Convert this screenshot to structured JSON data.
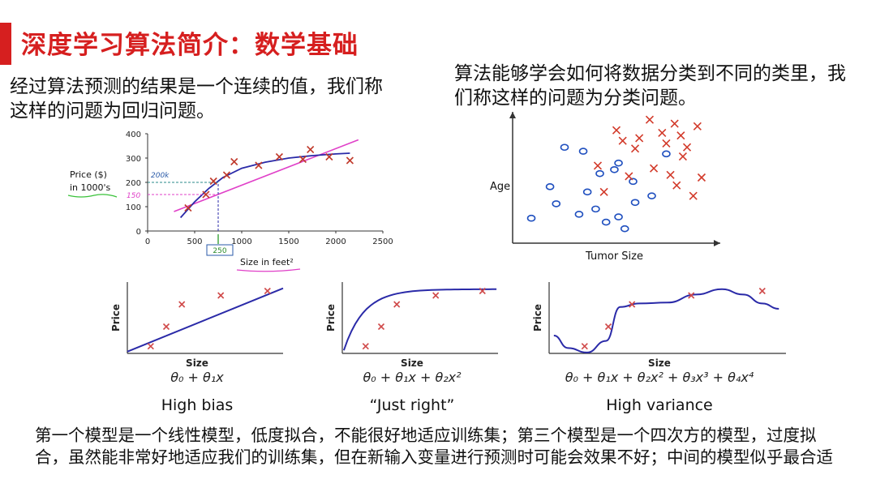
{
  "title": "深度学习算法简介：数学基础",
  "regression_text": "经过算法预测的结果是一个连续的值，我们称这样的问题为回归问题。",
  "classification_text": "算法能够学会如何将数据分类到不同的类里，我们称这样的问题为分类问题。",
  "bottom_text": "第一个模型是一个线性模型，低度拟合，不能很好地适应训练集；第三个模型是一个四次方的模型，过度拟合，虽然能非常好地适应我们的训练集，但在新输入变量进行预测时可能会效果不好；中间的模型似乎最合适",
  "colors": {
    "title": "#d61f1f",
    "fit_curve": "#2a2aa8",
    "linear_fit": "#e040c8",
    "cross": "#c0392b",
    "circle": "#1f4fbf"
  },
  "chart_data": [
    {
      "type": "scatter",
      "title": "",
      "xlabel": "Size in feet²",
      "ylabel": "Price ($) in 1000's",
      "xlim": [
        0,
        2500
      ],
      "ylim": [
        0,
        400
      ],
      "xticks": [
        "0",
        "500",
        "1000",
        "1500",
        "2000",
        "2500"
      ],
      "yticks": [
        "0",
        "100",
        "200",
        "300",
        "400"
      ],
      "annotations": [
        "200k",
        "150",
        "250"
      ],
      "points": [
        [
          430,
          95
        ],
        [
          620,
          150
        ],
        [
          700,
          205
        ],
        [
          840,
          230
        ],
        [
          920,
          285
        ],
        [
          1180,
          270
        ],
        [
          1400,
          305
        ],
        [
          1650,
          295
        ],
        [
          1730,
          335
        ],
        [
          1930,
          305
        ],
        [
          2150,
          290
        ]
      ],
      "curve": [
        [
          350,
          55
        ],
        [
          500,
          120
        ],
        [
          650,
          175
        ],
        [
          800,
          220
        ],
        [
          1000,
          258
        ],
        [
          1250,
          283
        ],
        [
          1500,
          300
        ],
        [
          1750,
          310
        ],
        [
          2000,
          317
        ],
        [
          2150,
          320
        ]
      ],
      "line": [
        [
          280,
          80
        ],
        [
          2240,
          375
        ]
      ],
      "annotation_points": {
        "x": 750,
        "y_curve": 200,
        "y_line": 150
      }
    },
    {
      "type": "scatter",
      "title": "",
      "xlabel": "Tumor Size",
      "ylabel": "Age",
      "xlim": [
        0,
        10
      ],
      "ylim": [
        0,
        10
      ],
      "series": [
        {
          "marker": "o",
          "points": [
            [
              0.9,
              1.9
            ],
            [
              1.8,
              4.3
            ],
            [
              2.5,
              7.3
            ],
            [
              3.4,
              7.0
            ],
            [
              3.6,
              3.9
            ],
            [
              3.2,
              2.2
            ],
            [
              4.0,
              2.6
            ],
            [
              4.2,
              5.3
            ],
            [
              4.5,
              1.6
            ],
            [
              5.1,
              2.0
            ],
            [
              5.8,
              4.7
            ],
            [
              5.1,
              6.1
            ],
            [
              5.9,
              3.1
            ],
            [
              6.7,
              3.6
            ],
            [
              7.4,
              6.8
            ],
            [
              5.4,
              1.1
            ],
            [
              4.9,
              5.6
            ],
            [
              2.1,
              3.0
            ]
          ]
        },
        {
          "marker": "x",
          "points": [
            [
              4.1,
              5.9
            ],
            [
              5.0,
              8.6
            ],
            [
              5.9,
              7.2
            ],
            [
              6.1,
              8.0
            ],
            [
              6.6,
              9.4
            ],
            [
              5.6,
              5.1
            ],
            [
              7.4,
              7.6
            ],
            [
              7.6,
              5.2
            ],
            [
              8.1,
              8.2
            ],
            [
              8.2,
              6.6
            ],
            [
              7.8,
              9.1
            ],
            [
              7.2,
              8.4
            ],
            [
              6.8,
              5.7
            ],
            [
              4.4,
              3.9
            ],
            [
              8.7,
              3.6
            ],
            [
              7.9,
              4.4
            ],
            [
              5.3,
              7.8
            ],
            [
              8.4,
              7.3
            ],
            [
              9.1,
              5.0
            ],
            [
              8.9,
              8.9
            ]
          ]
        }
      ]
    },
    {
      "type": "scatter",
      "title": "",
      "xlabel": "Size",
      "ylabel": "Price",
      "formula": "θ₀ + θ₁x",
      "caption": "High bias",
      "points": [
        [
          1.5,
          0.8
        ],
        [
          2.5,
          3.0
        ],
        [
          3.5,
          5.5
        ],
        [
          6.0,
          6.5
        ],
        [
          9.0,
          7.0
        ]
      ],
      "fit": "linear"
    },
    {
      "type": "scatter",
      "title": "",
      "xlabel": "Size",
      "ylabel": "Price",
      "formula": "θ₀ + θ₁x + θ₂x²",
      "caption": "“Just right”",
      "points": [
        [
          1.5,
          0.8
        ],
        [
          2.5,
          3.0
        ],
        [
          3.5,
          5.5
        ],
        [
          6.0,
          6.5
        ],
        [
          9.0,
          7.0
        ]
      ],
      "fit": "quadratic"
    },
    {
      "type": "scatter",
      "title": "",
      "xlabel": "Size",
      "ylabel": "Price",
      "formula": "θ₀ + θ₁x + θ₂x² + θ₃x³ + θ₄x⁴",
      "caption": "High variance",
      "points": [
        [
          1.5,
          0.8
        ],
        [
          2.5,
          3.0
        ],
        [
          3.5,
          5.5
        ],
        [
          6.0,
          6.5
        ],
        [
          9.0,
          7.0
        ]
      ],
      "fit": "quartic"
    }
  ]
}
